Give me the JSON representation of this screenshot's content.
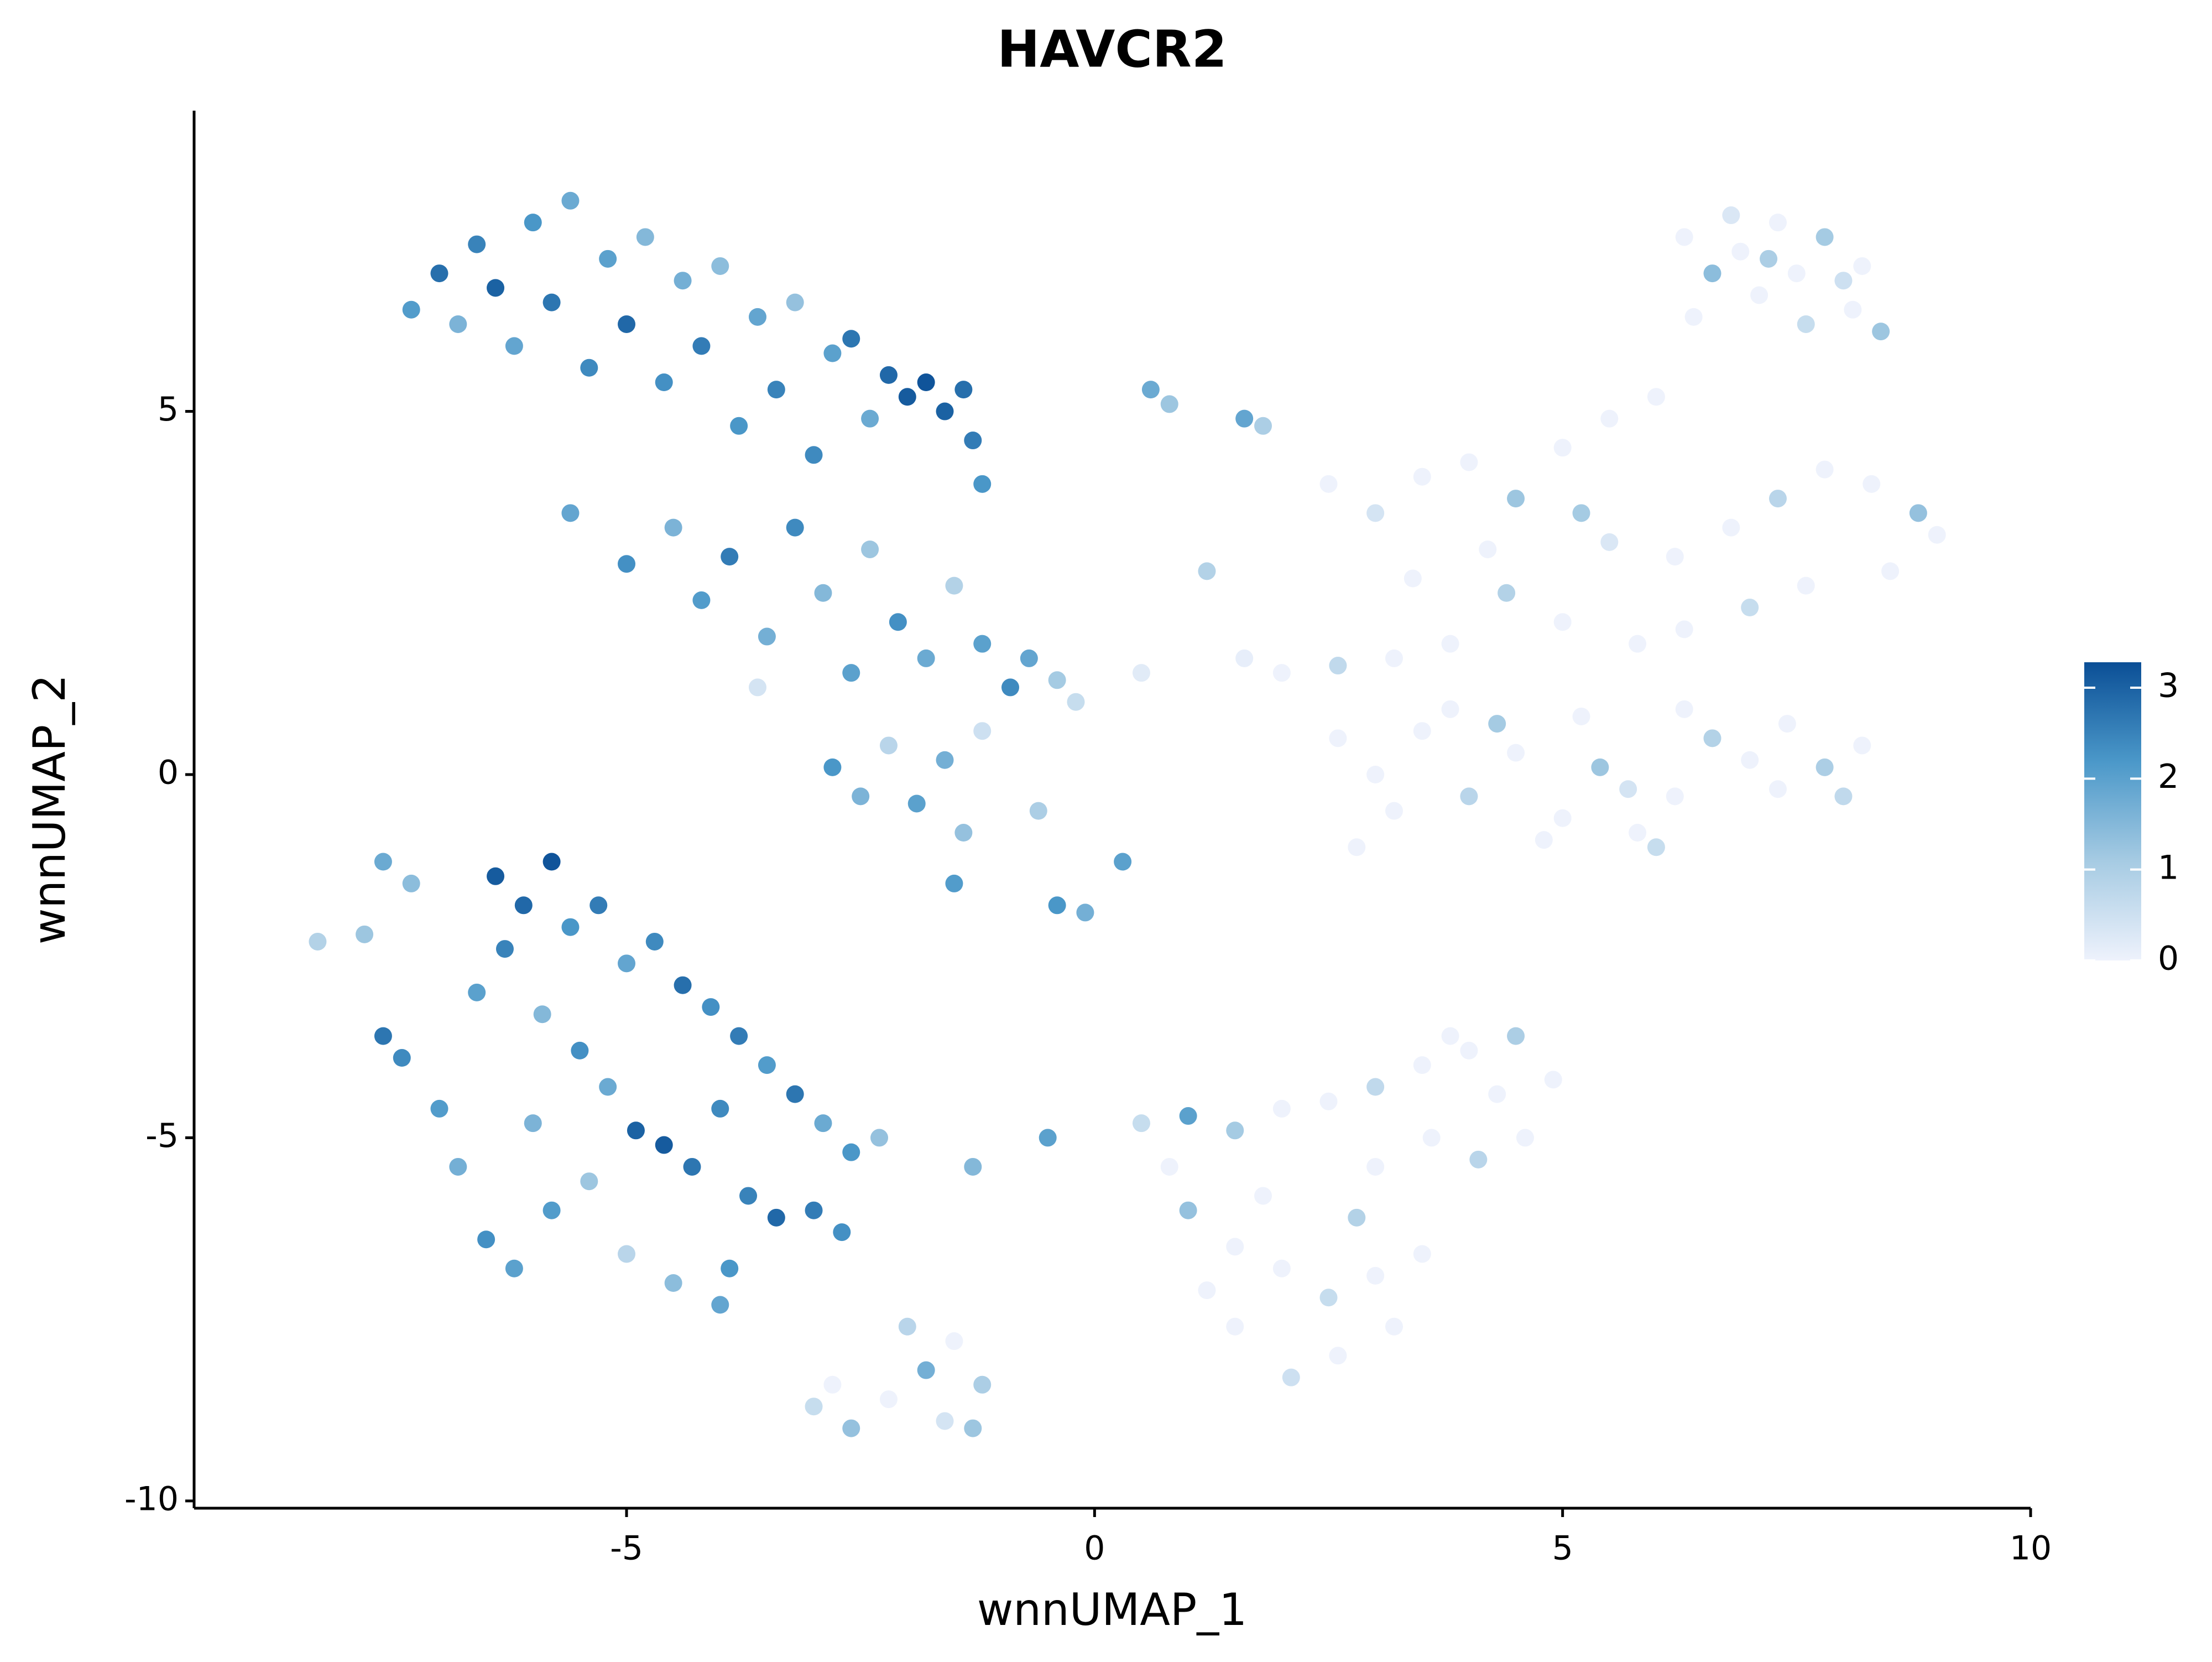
{
  "chart_data": {
    "type": "scatter",
    "title": "HAVCR2",
    "x_label": "wnnUMAP_1",
    "y_label": "wnnUMAP_2",
    "xlim": [
      -9.62,
      10
    ],
    "ylim": [
      -10.1,
      9.14
    ],
    "xticks": [
      -5,
      0,
      5,
      10
    ],
    "yticks": [
      -10,
      -5,
      0,
      5
    ],
    "colorbar": {
      "lim": [
        0,
        3.28
      ],
      "ticks": [
        0,
        1,
        2,
        3
      ],
      "colors": [
        "#eef2fc",
        "#a6cbe3",
        "#4b98c9",
        "#0b4f96"
      ]
    },
    "x": [
      -7.3,
      -7.0,
      -6.8,
      -6.6,
      -6.4,
      -6.2,
      -6.0,
      -5.8,
      -5.6,
      -5.4,
      -5.2,
      -5.0,
      -4.8,
      -4.6,
      -4.4,
      -4.2,
      -4.0,
      -3.8,
      -3.6,
      -3.4,
      -3.2,
      -3.0,
      -2.8,
      -2.6,
      -2.4,
      -2.2,
      -2.0,
      -1.8,
      -1.6,
      -1.4,
      -1.3,
      -1.2,
      -5.6,
      -5.0,
      -4.5,
      -4.2,
      -3.9,
      -3.5,
      -3.2,
      -2.9,
      -2.6,
      -2.4,
      -2.1,
      -1.8,
      -1.5,
      -1.2,
      -0.9,
      -0.7,
      -0.4,
      -0.2,
      -2.8,
      -2.5,
      -2.2,
      -1.9,
      -1.6,
      -1.4,
      -1.2,
      -1.5,
      -0.6,
      -3.6,
      0.6,
      0.8,
      1.6,
      1.8,
      -0.4,
      -0.1,
      0.3,
      0.5,
      1.2,
      1.6,
      6.3,
      6.8,
      7.3,
      7.8,
      8.2,
      6.6,
      7.1,
      7.6,
      8.1,
      8.4,
      6.9,
      7.5,
      8.0,
      6.4,
      7.2,
      2.5,
      3.0,
      3.5,
      4.0,
      4.5,
      5.0,
      5.5,
      6.0,
      5.5,
      6.2,
      6.8,
      7.3,
      7.8,
      8.3,
      8.8,
      9.0,
      8.5,
      7.6,
      7.0,
      6.3,
      5.8,
      5.0,
      4.4,
      3.8,
      3.2,
      2.6,
      2.0,
      4.2,
      5.2,
      3.4,
      2.6,
      3.0,
      3.5,
      4.0,
      4.5,
      5.0,
      5.4,
      5.8,
      6.2,
      6.6,
      7.0,
      7.4,
      7.8,
      8.2,
      8.0,
      7.3,
      6.0,
      4.8,
      3.8,
      4.3,
      5.2,
      6.3,
      3.2,
      2.8,
      5.7,
      -8.3,
      -7.8,
      -7.6,
      -7.3,
      -7.6,
      -7.4,
      -7.0,
      -6.8,
      -6.5,
      -6.2,
      -6.4,
      -6.1,
      -5.8,
      -6.3,
      -5.6,
      -5.3,
      -5.0,
      -4.7,
      -4.4,
      -4.1,
      -3.8,
      -3.5,
      -3.2,
      -2.9,
      -2.6,
      -5.9,
      -5.5,
      -5.2,
      -4.9,
      -4.6,
      -4.3,
      -4.0,
      -3.7,
      -3.4,
      -3.0,
      -2.7,
      -6.6,
      -6.0,
      -5.4,
      -5.8,
      -5.0,
      -4.5,
      -4.0,
      -3.9,
      -2.3,
      0.5,
      1.0,
      1.5,
      2.0,
      2.5,
      3.0,
      3.5,
      4.0,
      4.5,
      4.9,
      4.6,
      4.1,
      3.6,
      3.0,
      1.0,
      1.5,
      2.0,
      2.5,
      3.0,
      3.5,
      3.2,
      2.6,
      2.1,
      1.5,
      1.8,
      2.8,
      0.8,
      4.3,
      3.8,
      1.2,
      -3.0,
      -2.6,
      -2.2,
      -1.8,
      -1.6,
      -1.3,
      -1.5,
      -2.0,
      -1.2,
      -2.8,
      -0.5,
      -1.3
    ],
    "values": [
      6.4,
      6.9,
      6.2,
      7.3,
      6.7,
      5.9,
      7.6,
      6.5,
      7.9,
      5.6,
      7.1,
      6.2,
      7.4,
      5.4,
      6.8,
      5.9,
      7.0,
      4.8,
      6.3,
      5.3,
      6.5,
      4.4,
      5.8,
      6.0,
      4.9,
      5.5,
      5.2,
      5.4,
      5.0,
      5.3,
      4.6,
      4.0,
      3.6,
      2.9,
      3.4,
      2.4,
      3.0,
      1.9,
      3.4,
      2.5,
      1.4,
      3.1,
      2.1,
      1.6,
      2.6,
      1.8,
      1.2,
      1.6,
      1.3,
      1.0,
      0.1,
      -0.3,
      0.4,
      -0.4,
      0.2,
      -0.8,
      0.6,
      -1.5,
      -0.5,
      1.2,
      5.3,
      5.1,
      4.9,
      4.8,
      -1.8,
      -1.9,
      -1.2,
      1.4,
      2.8,
      1.6,
      7.4,
      7.7,
      7.6,
      7.4,
      7.0,
      6.9,
      6.6,
      6.2,
      6.4,
      6.1,
      7.2,
      6.9,
      6.8,
      6.3,
      7.1,
      4.0,
      3.6,
      4.1,
      4.3,
      3.8,
      4.5,
      4.9,
      5.2,
      3.2,
      3.0,
      3.4,
      3.8,
      4.2,
      4.0,
      3.6,
      3.3,
      2.8,
      2.6,
      2.3,
      2.0,
      1.8,
      2.1,
      2.5,
      1.8,
      1.6,
      1.5,
      1.4,
      3.1,
      3.6,
      2.7,
      0.5,
      0.0,
      0.6,
      -0.3,
      0.3,
      -0.6,
      0.1,
      -0.8,
      -0.3,
      0.5,
      0.2,
      0.7,
      0.1,
      0.4,
      -0.3,
      -0.2,
      -1.0,
      -0.9,
      0.9,
      0.7,
      0.8,
      0.9,
      -0.5,
      -1.0,
      -0.2,
      -2.3,
      -2.2,
      -1.2,
      -1.5,
      -3.6,
      -3.9,
      -4.6,
      -5.4,
      -6.4,
      -6.8,
      -1.4,
      -1.8,
      -1.2,
      -2.4,
      -2.1,
      -1.8,
      -2.6,
      -2.3,
      -2.9,
      -3.2,
      -3.6,
      -4.0,
      -4.4,
      -4.8,
      -5.2,
      -3.3,
      -3.8,
      -4.3,
      -4.9,
      -5.1,
      -5.4,
      -4.6,
      -5.8,
      -6.1,
      -6.0,
      -6.3,
      -3.0,
      -4.8,
      -5.6,
      -6.0,
      -6.6,
      -7.0,
      -7.3,
      -6.8,
      -5.0,
      -4.8,
      -4.7,
      -4.9,
      -4.6,
      -4.5,
      -4.3,
      -4.0,
      -3.8,
      -3.6,
      -4.2,
      -5.0,
      -5.3,
      -5.0,
      -5.4,
      -6.0,
      -6.5,
      -6.8,
      -7.2,
      -6.9,
      -6.6,
      -7.6,
      -8.0,
      -8.3,
      -7.6,
      -5.8,
      -6.1,
      -5.4,
      -4.4,
      -3.6,
      -7.1,
      -8.7,
      -9.0,
      -8.6,
      -8.2,
      -8.9,
      -9.0,
      -7.8,
      -7.6,
      -8.4,
      -8.4,
      -5.0,
      -5.4
    ],
    "color_values": [
      2.1,
      2.8,
      1.6,
      2.5,
      3.0,
      1.9,
      2.2,
      2.7,
      1.8,
      2.4,
      2.0,
      2.9,
      1.5,
      2.3,
      1.7,
      2.6,
      1.4,
      2.2,
      1.9,
      2.5,
      1.3,
      2.4,
      2.0,
      2.7,
      1.8,
      2.9,
      3.1,
      3.2,
      3.0,
      2.8,
      2.6,
      2.2,
      1.9,
      2.3,
      1.6,
      2.1,
      2.6,
      1.7,
      2.4,
      1.5,
      2.0,
      1.2,
      2.3,
      1.8,
      0.9,
      2.0,
      2.4,
      1.9,
      1.1,
      0.6,
      2.2,
      1.6,
      0.8,
      2.0,
      1.7,
      1.3,
      0.5,
      2.1,
      1.0,
      0.4,
      1.8,
      1.2,
      1.9,
      1.0,
      2.2,
      1.7,
      2.0,
      0.2,
      0.9,
      0.1,
      0,
      0.3,
      0,
      1.1,
      0,
      1.4,
      0,
      0.6,
      0,
      1.2,
      0,
      0,
      0.5,
      0,
      1.0,
      0,
      0.4,
      0,
      0,
      1.2,
      0,
      0,
      0,
      0.3,
      0,
      0,
      0.8,
      0,
      0,
      1.3,
      0,
      0,
      0,
      0.6,
      0,
      0,
      0,
      0.9,
      0,
      0,
      0.7,
      0,
      0,
      1.1,
      0,
      0,
      0,
      0,
      0.8,
      0,
      0,
      1.2,
      0,
      0,
      0.9,
      0,
      0,
      1.0,
      0,
      0.7,
      0,
      0.6,
      0,
      0,
      1.1,
      0,
      0,
      0,
      0,
      0.4,
      0.9,
      1.2,
      1.8,
      1.4,
      2.7,
      2.4,
      2.1,
      1.7,
      2.3,
      2.0,
      3.1,
      2.9,
      3.2,
      2.5,
      2.2,
      2.6,
      1.9,
      2.4,
      2.8,
      2.3,
      2.6,
      2.1,
      2.7,
      1.8,
      2.2,
      1.5,
      2.3,
      1.8,
      3.0,
      3.1,
      2.7,
      2.4,
      2.5,
      2.9,
      2.6,
      2.3,
      2.0,
      1.6,
      1.2,
      2.1,
      0.8,
      1.4,
      1.9,
      2.2,
      1.3,
      0.6,
      2.0,
      1.1,
      0,
      0,
      0.7,
      0,
      0,
      1.0,
      0,
      0,
      0.8,
      0,
      0,
      1.3,
      0,
      0,
      0.6,
      0,
      0,
      0,
      0,
      0.5,
      0,
      0,
      0.9,
      0,
      0,
      0,
      0,
      0.6,
      1.3,
      0,
      1.7,
      0.4,
      1.2,
      0,
      0.8,
      1.0,
      0,
      2.0,
      1.5
    ]
  }
}
